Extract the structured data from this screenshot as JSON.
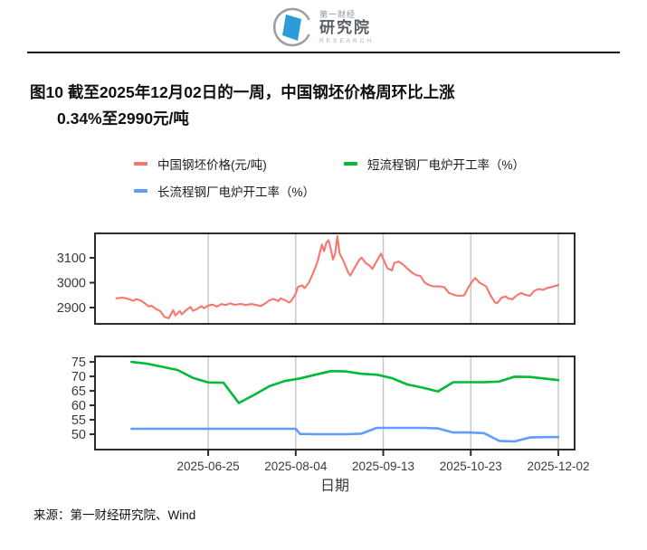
{
  "header": {
    "logo": {
      "brand_cn_small": "第一财经",
      "brand_cn_large": "研究院",
      "brand_en": "RESEARCH",
      "icon_blue": "#2b9cd8",
      "icon_ring": "#9aa0a6"
    }
  },
  "figure": {
    "title_line1": "图10  截至2025年12月02日的一周，中国钢坯价格周环比上涨",
    "title_line2": "0.34%至2990元/吨"
  },
  "legend": {
    "items": [
      {
        "label": "中国钢坯价格(元/吨)",
        "color": "#F8766D"
      },
      {
        "label": "短流程钢厂电炉开工率（%）",
        "color": "#00BA38"
      },
      {
        "label": "长流程钢厂电炉开工率（%）",
        "color": "#619CFF"
      }
    ]
  },
  "source": "来源：第一财经研究院、Wind",
  "chart_data": {
    "type": "line",
    "title": "图10 截至2025年12月02日的一周，中国钢坯价格周环比上涨0.34%至2990元/吨",
    "grid": "vertical-only",
    "legend_position": "top",
    "x_axis": {
      "label": "日期",
      "unit": "days (0 = 2025-05-14)",
      "domain": [
        0,
        202
      ],
      "tick_days": [
        42,
        82,
        122,
        162,
        202
      ],
      "tick_labels": [
        "2025-06-25",
        "2025-08-04",
        "2025-09-13",
        "2025-10-23",
        "2025-12-02"
      ]
    },
    "panels": [
      {
        "key": "price",
        "ylabel": "",
        "ylim": [
          2834.5,
          3198.2
        ],
        "yticks": [
          2900,
          3000,
          3100
        ],
        "series": [
          {
            "key": "price-series",
            "name": "中国钢坯价格(元/吨)",
            "color": "#F8766D",
            "width": 2.1,
            "points": [
              [
                0,
                2937
              ],
              [
                3,
                2940
              ],
              [
                6,
                2933
              ],
              [
                8,
                2927
              ],
              [
                9,
                2934
              ],
              [
                11,
                2929
              ],
              [
                13,
                2917
              ],
              [
                15,
                2904
              ],
              [
                16,
                2908
              ],
              [
                18,
                2895
              ],
              [
                20,
                2886
              ],
              [
                21,
                2876
              ],
              [
                22,
                2862
              ],
              [
                24,
                2857
              ],
              [
                25,
                2874
              ],
              [
                26,
                2890
              ],
              [
                27,
                2868
              ],
              [
                29,
                2886
              ],
              [
                30,
                2873
              ],
              [
                32,
                2890
              ],
              [
                34,
                2902
              ],
              [
                35,
                2887
              ],
              [
                37,
                2895
              ],
              [
                39,
                2906
              ],
              [
                40,
                2897
              ],
              [
                42,
                2908
              ],
              [
                44,
                2912
              ],
              [
                46,
                2904
              ],
              [
                48,
                2914
              ],
              [
                50,
                2910
              ],
              [
                52,
                2917
              ],
              [
                54,
                2911
              ],
              [
                57,
                2915
              ],
              [
                59,
                2910
              ],
              [
                62,
                2914
              ],
              [
                64,
                2910
              ],
              [
                66,
                2906
              ],
              [
                68,
                2916
              ],
              [
                70,
                2929
              ],
              [
                72,
                2935
              ],
              [
                74,
                2926
              ],
              [
                75,
                2937
              ],
              [
                77,
                2930
              ],
              [
                79,
                2920
              ],
              [
                80,
                2927
              ],
              [
                82,
                2956
              ],
              [
                83,
                2983
              ],
              [
                85,
                2989
              ],
              [
                86,
                2978
              ],
              [
                88,
                3000
              ],
              [
                90,
                3039
              ],
              [
                92,
                3085
              ],
              [
                93,
                3121
              ],
              [
                94,
                3154
              ],
              [
                95,
                3127
              ],
              [
                96,
                3161
              ],
              [
                97,
                3171
              ],
              [
                98,
                3137
              ],
              [
                99,
                3093
              ],
              [
                100,
                3115
              ],
              [
                101,
                3187
              ],
              [
                102,
                3119
              ],
              [
                104,
                3083
              ],
              [
                106,
                3041
              ],
              [
                107,
                3029
              ],
              [
                109,
                3061
              ],
              [
                111,
                3091
              ],
              [
                112,
                3101
              ],
              [
                114,
                3079
              ],
              [
                116,
                3067
              ],
              [
                117,
                3055
              ],
              [
                119,
                3087
              ],
              [
                121,
                3117
              ],
              [
                122,
                3095
              ],
              [
                124,
                3057
              ],
              [
                126,
                3049
              ],
              [
                127,
                3079
              ],
              [
                129,
                3085
              ],
              [
                131,
                3073
              ],
              [
                133,
                3057
              ],
              [
                135,
                3041
              ],
              [
                137,
                3031
              ],
              [
                139,
                3027
              ],
              [
                141,
                3000
              ],
              [
                143,
                2990
              ],
              [
                145,
                2985
              ],
              [
                148,
                2985
              ],
              [
                150,
                2981
              ],
              [
                152,
                2959
              ],
              [
                155,
                2949
              ],
              [
                157,
                2947
              ],
              [
                159,
                2949
              ],
              [
                161,
                2983
              ],
              [
                163,
                3009
              ],
              [
                164,
                3019
              ],
              [
                166,
                3000
              ],
              [
                168,
                2990
              ],
              [
                169,
                2985
              ],
              [
                171,
                2949
              ],
              [
                173,
                2921
              ],
              [
                174,
                2917
              ],
              [
                176,
                2939
              ],
              [
                178,
                2945
              ],
              [
                179,
                2937
              ],
              [
                181,
                2933
              ],
              [
                183,
                2949
              ],
              [
                185,
                2959
              ],
              [
                187,
                2951
              ],
              [
                189,
                2947
              ],
              [
                191,
                2967
              ],
              [
                193,
                2975
              ],
              [
                195,
                2971
              ],
              [
                197,
                2979
              ],
              [
                199,
                2983
              ],
              [
                202,
                2990
              ]
            ]
          }
        ]
      },
      {
        "key": "rates",
        "ylabel": "",
        "ylim": [
          44.7,
          76.9
        ],
        "yticks": [
          50,
          55,
          60,
          65,
          70,
          75
        ],
        "series": [
          {
            "key": "short-process-series",
            "name": "短流程钢厂电炉开工率（%）",
            "color": "#00BA38",
            "width": 2.6,
            "points": [
              [
                7,
                75
              ],
              [
                14,
                74.4
              ],
              [
                21,
                73.3
              ],
              [
                28,
                72.2
              ],
              [
                35,
                69.5
              ],
              [
                42,
                67.9
              ],
              [
                49,
                67.8
              ],
              [
                56,
                60.8
              ],
              [
                63,
                63.6
              ],
              [
                70,
                66.6
              ],
              [
                77,
                68.4
              ],
              [
                84,
                69.3
              ],
              [
                91,
                70.6
              ],
              [
                98,
                71.8
              ],
              [
                105,
                71.7
              ],
              [
                112,
                70.9
              ],
              [
                119,
                70.6
              ],
              [
                126,
                69.4
              ],
              [
                133,
                67.2
              ],
              [
                140,
                66.1
              ],
              [
                147,
                64.8
              ],
              [
                154,
                68
              ],
              [
                161,
                68
              ],
              [
                168,
                68
              ],
              [
                175,
                68.2
              ],
              [
                182,
                69.9
              ],
              [
                189,
                69.8
              ],
              [
                196,
                69.2
              ],
              [
                202,
                68.7
              ]
            ]
          },
          {
            "key": "long-process-series",
            "name": "长流程钢厂电炉开工率（%）",
            "color": "#619CFF",
            "width": 2.6,
            "points": [
              [
                7,
                51.9
              ],
              [
                14,
                51.9
              ],
              [
                21,
                51.9
              ],
              [
                28,
                51.9
              ],
              [
                35,
                51.9
              ],
              [
                42,
                51.9
              ],
              [
                49,
                51.9
              ],
              [
                56,
                51.9
              ],
              [
                63,
                51.9
              ],
              [
                70,
                51.9
              ],
              [
                77,
                51.9
              ],
              [
                82,
                51.9
              ],
              [
                84,
                50.1
              ],
              [
                91,
                50
              ],
              [
                98,
                50
              ],
              [
                105,
                50
              ],
              [
                112,
                50.2
              ],
              [
                119,
                52.2
              ],
              [
                126,
                52.2
              ],
              [
                133,
                52.2
              ],
              [
                140,
                52.2
              ],
              [
                147,
                52
              ],
              [
                154,
                50.6
              ],
              [
                161,
                50.6
              ],
              [
                168,
                50.4
              ],
              [
                175,
                47.7
              ],
              [
                182,
                47.5
              ],
              [
                189,
                48.9
              ],
              [
                196,
                49
              ],
              [
                202,
                49
              ]
            ]
          }
        ]
      }
    ]
  }
}
